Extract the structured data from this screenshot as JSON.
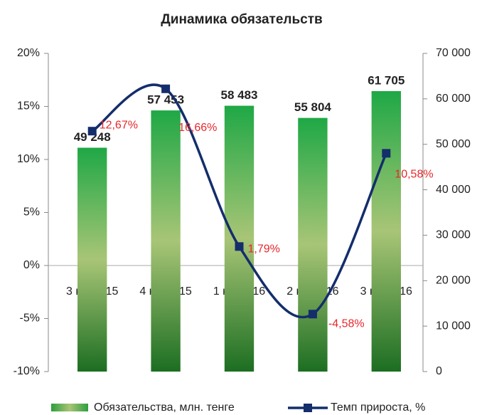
{
  "chart_data": {
    "type": "bar_line",
    "title": "Динамика обязательств",
    "categories": [
      "3 кв. 2015",
      "4 кв. 2015",
      "1 кв. 2016",
      "2 кв. 2016",
      "3 кв. 2016"
    ],
    "series": [
      {
        "name": "Обязательства, млн. тенге",
        "type": "bar",
        "axis": "y2",
        "color": "#2e9e3e",
        "values": [
          49248,
          57453,
          58483,
          55804,
          61705
        ],
        "value_labels": [
          "49 248",
          "57 453",
          "58 483",
          "55 804",
          "61 705"
        ]
      },
      {
        "name": "Темп прироста, %",
        "type": "line",
        "axis": "y",
        "color": "#142d6b",
        "values": [
          12.67,
          16.66,
          1.79,
          -4.58,
          10.58
        ],
        "value_labels": [
          "12,67%",
          "16,66%",
          "1,79%",
          "-4,58%",
          "10,58%"
        ]
      }
    ],
    "ylim": [
      -10,
      20
    ],
    "yticks": [
      {
        "value": -10,
        "label": "-10%"
      },
      {
        "value": -5,
        "label": "-5%"
      },
      {
        "value": 0,
        "label": "0%"
      },
      {
        "value": 5,
        "label": "5%"
      },
      {
        "value": 10,
        "label": "10%"
      },
      {
        "value": 15,
        "label": "15%"
      },
      {
        "value": 20,
        "label": "20%"
      }
    ],
    "y2lim": [
      0,
      70000
    ],
    "y2ticks": [
      0,
      {
        "value": 10000,
        "label": "10 000"
      },
      {
        "value": 20000,
        "label": "20 000"
      },
      {
        "value": 30000,
        "label": "30 000"
      },
      {
        "value": 40000,
        "label": "40 000"
      },
      {
        "value": 50000,
        "label": "50 000"
      },
      {
        "value": 60000,
        "label": "60 000"
      },
      {
        "value": 70000,
        "label": "70 000"
      }
    ],
    "legend": "bottom"
  }
}
